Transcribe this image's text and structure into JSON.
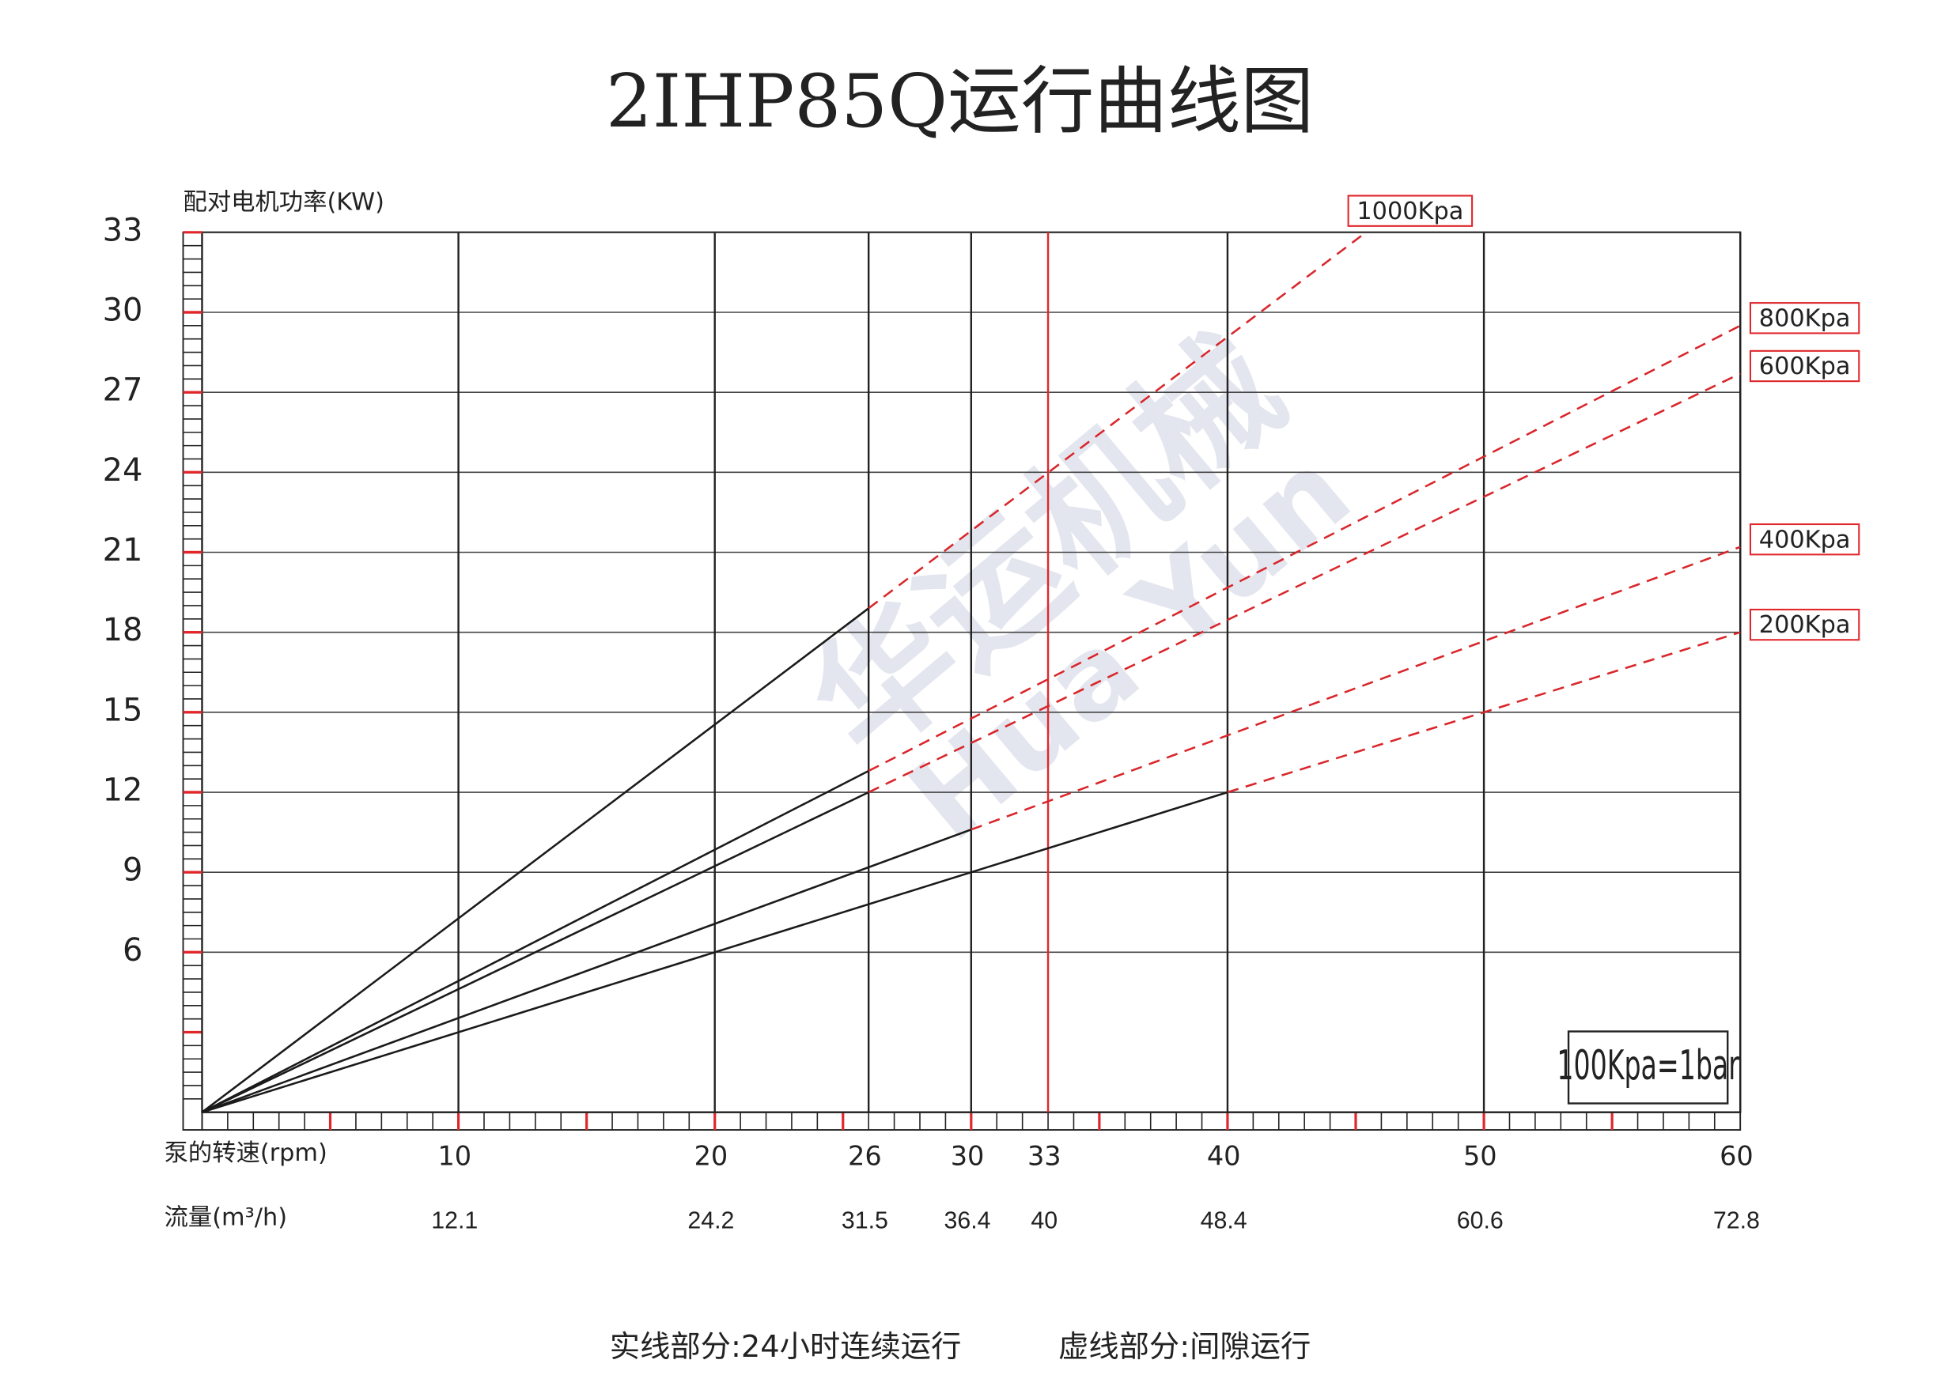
{
  "chart_data": {
    "type": "line",
    "title": "2IHP85Q运行曲线图",
    "y_label": "配对电机功率(KW)",
    "x_label": "泵的转速(rpm)",
    "flow_label": "流量(m³/h)",
    "note": "100Kpa=1bar",
    "footer": [
      "实线部分:24小时连续运行",
      "虚线部分:间隙运行"
    ],
    "watermark": [
      "华运机械",
      "Hua Yun"
    ],
    "xlim": [
      0,
      60
    ],
    "ylim": [
      0,
      33
    ],
    "xticks": [
      10,
      20,
      26,
      30,
      33,
      40,
      50,
      60
    ],
    "xtick_grid_colors": [
      "#222",
      "#222",
      "#222",
      "#222",
      "#e0262b",
      "#222",
      "#222",
      "#222"
    ],
    "flow": [
      12.1,
      24.2,
      31.5,
      36.4,
      40,
      48.4,
      60.6,
      72.8
    ],
    "yticks": [
      6,
      9,
      12,
      15,
      18,
      21,
      24,
      27,
      30,
      33
    ],
    "xminor": 1,
    "xmajor": 5,
    "yminor": 0.5,
    "ymajor": 3,
    "grid": true,
    "solid_color": "#1a1a1a",
    "dashed_color": "#d9262b",
    "styles": [
      "solid",
      "dashed"
    ],
    "series": [
      {
        "name": "1000Kpa",
        "x": [
          0,
          26,
          45.4
        ],
        "values": [
          0,
          18.9,
          33
        ]
      },
      {
        "name": "800Kpa",
        "x": [
          0,
          26,
          60
        ],
        "values": [
          0,
          12.8,
          29.5
        ]
      },
      {
        "name": "600Kpa",
        "x": [
          0,
          26,
          60
        ],
        "values": [
          0,
          12,
          27.7
        ]
      },
      {
        "name": "400Kpa",
        "x": [
          0,
          30,
          60
        ],
        "values": [
          0,
          10.6,
          21.2
        ]
      },
      {
        "name": "200Kpa",
        "x": [
          0,
          40,
          60
        ],
        "values": [
          0,
          12,
          18
        ]
      }
    ]
  }
}
